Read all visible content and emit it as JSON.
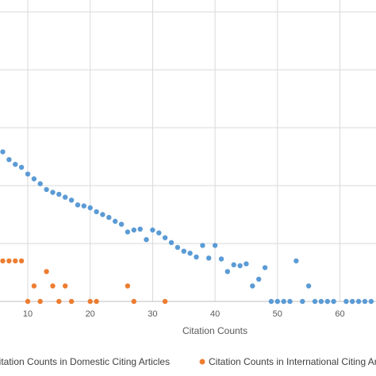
{
  "chart_data": {
    "type": "scatter",
    "title": "",
    "xlabel": "Citation Counts",
    "ylabel": "",
    "xlim": [
      0,
      70
    ],
    "ylim": [
      0,
      3
    ],
    "x_ticks": [
      10,
      20,
      30,
      40,
      50,
      60
    ],
    "grid": true,
    "legend_placement": "bottom",
    "series": [
      {
        "name": "Citation Counts in Domestic Citing Articles",
        "color": "#5B9BD5",
        "points": [
          [
            0,
            1.9
          ],
          [
            1,
            1.81
          ],
          [
            2,
            1.74
          ],
          [
            3,
            1.69
          ],
          [
            4,
            1.64
          ],
          [
            5,
            1.59
          ],
          [
            6,
            1.55
          ],
          [
            7,
            1.47
          ],
          [
            8,
            1.42
          ],
          [
            9,
            1.39
          ],
          [
            10,
            1.32
          ],
          [
            11,
            1.27
          ],
          [
            12,
            1.22
          ],
          [
            13,
            1.16
          ],
          [
            14,
            1.13
          ],
          [
            15,
            1.11
          ],
          [
            16,
            1.08
          ],
          [
            17,
            1.05
          ],
          [
            18,
            1.0
          ],
          [
            19,
            0.99
          ],
          [
            20,
            0.97
          ],
          [
            21,
            0.93
          ],
          [
            22,
            0.9
          ],
          [
            23,
            0.87
          ],
          [
            24,
            0.83
          ],
          [
            25,
            0.8
          ],
          [
            26,
            0.72
          ],
          [
            27,
            0.74
          ],
          [
            28,
            0.75
          ],
          [
            29,
            0.64
          ],
          [
            30,
            0.74
          ],
          [
            31,
            0.71
          ],
          [
            32,
            0.66
          ],
          [
            33,
            0.61
          ],
          [
            34,
            0.56
          ],
          [
            35,
            0.52
          ],
          [
            36,
            0.5
          ],
          [
            37,
            0.46
          ],
          [
            38,
            0.58
          ],
          [
            39,
            0.45
          ],
          [
            40,
            0.58
          ],
          [
            41,
            0.44
          ],
          [
            42,
            0.31
          ],
          [
            43,
            0.38
          ],
          [
            44,
            0.37
          ],
          [
            45,
            0.39
          ],
          [
            46,
            0.16
          ],
          [
            47,
            0.23
          ],
          [
            48,
            0.35
          ],
          [
            49,
            0.0
          ],
          [
            50,
            0.0
          ],
          [
            51,
            0.0
          ],
          [
            52,
            0.0
          ],
          [
            53,
            0.42
          ],
          [
            54,
            0.0
          ],
          [
            55,
            0.16
          ],
          [
            56,
            0.0
          ],
          [
            57,
            0.0
          ],
          [
            58,
            0.0
          ],
          [
            59,
            0.0
          ],
          [
            61,
            0.0
          ],
          [
            62,
            0.0
          ],
          [
            63,
            0.0
          ],
          [
            64,
            0.0
          ],
          [
            65,
            0.0
          ],
          [
            68,
            0.0
          ]
        ]
      },
      {
        "name": "Citation Counts in International Citing Articles",
        "color": "#ED7D31",
        "points": [
          [
            0,
            0.31
          ],
          [
            1,
            0.31
          ],
          [
            2,
            0.38
          ],
          [
            3,
            0.37
          ],
          [
            4,
            0.4
          ],
          [
            5,
            0.4
          ],
          [
            6,
            0.42
          ],
          [
            7,
            0.42
          ],
          [
            8,
            0.42
          ],
          [
            9,
            0.42
          ],
          [
            10,
            0.0
          ],
          [
            11,
            0.16
          ],
          [
            12,
            0.0
          ],
          [
            13,
            0.31
          ],
          [
            14,
            0.16
          ],
          [
            15,
            0.0
          ],
          [
            16,
            0.16
          ],
          [
            17,
            0.0
          ],
          [
            20,
            0.0
          ],
          [
            21,
            0.0
          ],
          [
            26,
            0.16
          ],
          [
            27,
            0.0
          ],
          [
            32,
            0.0
          ]
        ]
      }
    ]
  }
}
